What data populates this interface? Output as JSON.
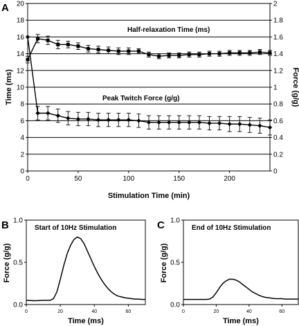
{
  "chart_data": [
    {
      "panel": "A",
      "type": "line",
      "xlabel": "Stimulation Time (min)",
      "ylabel_left": "Time (ms)",
      "ylabel_right": "Force (g/g)",
      "xlim": [
        0,
        240
      ],
      "ylim_left": [
        0,
        20
      ],
      "ylim_right": [
        0,
        2
      ],
      "x_ticks": [
        0,
        50,
        100,
        150,
        200
      ],
      "y_ticks_left": [
        0,
        2,
        4,
        6,
        8,
        10,
        12,
        14,
        16,
        18,
        20
      ],
      "y_ticks_right": [
        "0",
        "0.2",
        "0.4",
        "0.6",
        "0.8",
        "1",
        "1.2",
        "1.4",
        "1.6",
        "1.8",
        "2"
      ],
      "grid": "horizontal",
      "annotations": [
        "Half-relaxation Time (ms)",
        "Peak Twitch Force (g/g)"
      ],
      "series": [
        {
          "axis": "left",
          "marker": "square",
          "x": [
            0,
            10,
            20,
            30,
            40,
            50,
            60,
            70,
            80,
            90,
            100,
            110,
            120,
            130,
            140,
            150,
            160,
            170,
            180,
            190,
            200,
            210,
            220,
            230,
            240
          ],
          "y": [
            13.3,
            15.8,
            15.6,
            15.1,
            15.1,
            14.9,
            14.6,
            14.5,
            14.4,
            14.3,
            14.3,
            14.3,
            13.9,
            13.7,
            13.8,
            13.8,
            13.9,
            13.9,
            14.0,
            14.0,
            14.1,
            14.1,
            14.1,
            14.2,
            14.1
          ],
          "err": [
            0.4,
            0.5,
            0.5,
            0.5,
            0.4,
            0.4,
            0.4,
            0.4,
            0.4,
            0.4,
            0.4,
            0.3,
            0.3,
            0.3,
            0.3,
            0.3,
            0.3,
            0.3,
            0.3,
            0.3,
            0.3,
            0.3,
            0.3,
            0.3,
            0.3
          ]
        },
        {
          "axis": "right",
          "marker": "diamond",
          "x": [
            0,
            10,
            20,
            30,
            40,
            50,
            60,
            70,
            80,
            90,
            100,
            110,
            120,
            130,
            140,
            150,
            160,
            170,
            180,
            190,
            200,
            210,
            220,
            230,
            240
          ],
          "y": [
            1.6,
            0.69,
            0.69,
            0.66,
            0.63,
            0.62,
            0.62,
            0.61,
            0.61,
            0.61,
            0.61,
            0.6,
            0.58,
            0.58,
            0.58,
            0.58,
            0.58,
            0.58,
            0.57,
            0.57,
            0.56,
            0.56,
            0.55,
            0.54,
            0.52
          ],
          "err": [
            0.0,
            0.08,
            0.08,
            0.08,
            0.08,
            0.08,
            0.08,
            0.08,
            0.08,
            0.08,
            0.08,
            0.08,
            0.08,
            0.08,
            0.08,
            0.08,
            0.08,
            0.08,
            0.08,
            0.08,
            0.09,
            0.09,
            0.09,
            0.09,
            0.09
          ]
        }
      ]
    },
    {
      "panel": "B",
      "type": "line",
      "title": "Start of 10Hz Stimulation",
      "xlabel": "Time (ms)",
      "ylabel": "Force (g/g)",
      "xlim": [
        0,
        70
      ],
      "ylim": [
        0,
        1
      ],
      "x_ticks": [
        0,
        20,
        40,
        60
      ],
      "y_ticks": [
        "0.0",
        "0.5",
        "1.0"
      ],
      "series": [
        {
          "x": [
            0,
            5,
            10,
            14,
            16,
            18,
            20,
            22,
            24,
            26,
            28,
            30,
            32,
            34,
            36,
            38,
            40,
            42,
            44,
            46,
            48,
            50,
            52,
            54,
            56,
            58,
            60,
            62,
            64,
            66,
            68,
            70
          ],
          "y": [
            0.05,
            0.045,
            0.05,
            0.05,
            0.07,
            0.15,
            0.3,
            0.46,
            0.6,
            0.7,
            0.77,
            0.8,
            0.78,
            0.72,
            0.63,
            0.54,
            0.45,
            0.37,
            0.3,
            0.24,
            0.19,
            0.15,
            0.12,
            0.1,
            0.09,
            0.08,
            0.075,
            0.07,
            0.065,
            0.065,
            0.06,
            0.06
          ]
        }
      ]
    },
    {
      "panel": "C",
      "type": "line",
      "title": "End of 10Hz Stimulation",
      "xlabel": "Time (ms)",
      "ylabel": "Force (g/g)",
      "xlim": [
        0,
        70
      ],
      "ylim": [
        0,
        1
      ],
      "x_ticks": [
        0,
        20,
        40,
        60
      ],
      "y_ticks": [
        "0.0",
        "0.5",
        "1.0"
      ],
      "series": [
        {
          "x": [
            0,
            5,
            10,
            14,
            16,
            18,
            20,
            22,
            24,
            26,
            28,
            30,
            32,
            34,
            36,
            38,
            40,
            42,
            44,
            46,
            48,
            50,
            52,
            54,
            56,
            58,
            60,
            62,
            64,
            66,
            68,
            70
          ],
          "y": [
            0.06,
            0.06,
            0.06,
            0.06,
            0.065,
            0.09,
            0.14,
            0.2,
            0.25,
            0.28,
            0.3,
            0.3,
            0.29,
            0.27,
            0.24,
            0.21,
            0.18,
            0.15,
            0.13,
            0.11,
            0.095,
            0.085,
            0.08,
            0.075,
            0.07,
            0.07,
            0.07,
            0.065,
            0.065,
            0.065,
            0.065,
            0.065
          ]
        }
      ]
    }
  ]
}
